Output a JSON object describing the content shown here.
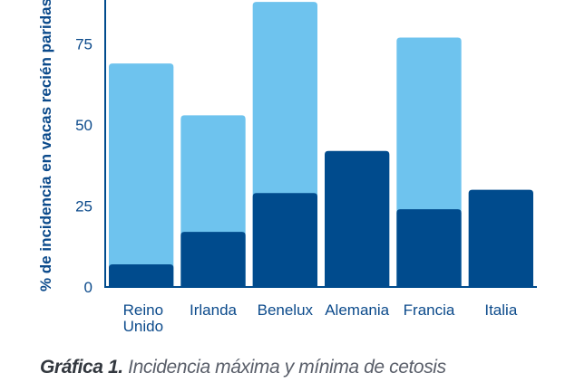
{
  "chart_data": {
    "type": "bar",
    "stacked": false,
    "overlap": true,
    "categories": [
      "Reino Unido",
      "Irlanda",
      "Benelux",
      "Alemania",
      "Francia",
      "Italia"
    ],
    "category_lines": [
      [
        "Reino",
        "Unido"
      ],
      [
        "Irlanda"
      ],
      [
        "Benelux"
      ],
      [
        "Alemania"
      ],
      [
        "Francia"
      ],
      [
        "Italia"
      ]
    ],
    "series": [
      {
        "key": "max",
        "values": [
          69,
          53,
          88,
          null,
          77,
          null
        ]
      },
      {
        "key": "min",
        "values": [
          7,
          17,
          29,
          42,
          24,
          30
        ]
      }
    ],
    "colors": {
      "max": "#6ec3ee",
      "min": "#004b8d",
      "axis": "#004b8d"
    },
    "ylabel": "% de incidencia en vacas recién paridas",
    "yticks": [
      0,
      25,
      50,
      75
    ],
    "ylim": [
      0,
      90
    ],
    "grid": false
  },
  "caption": {
    "lead": "Gráfica 1.",
    "text": " Incidencia máxima y mínima de cetosis"
  }
}
